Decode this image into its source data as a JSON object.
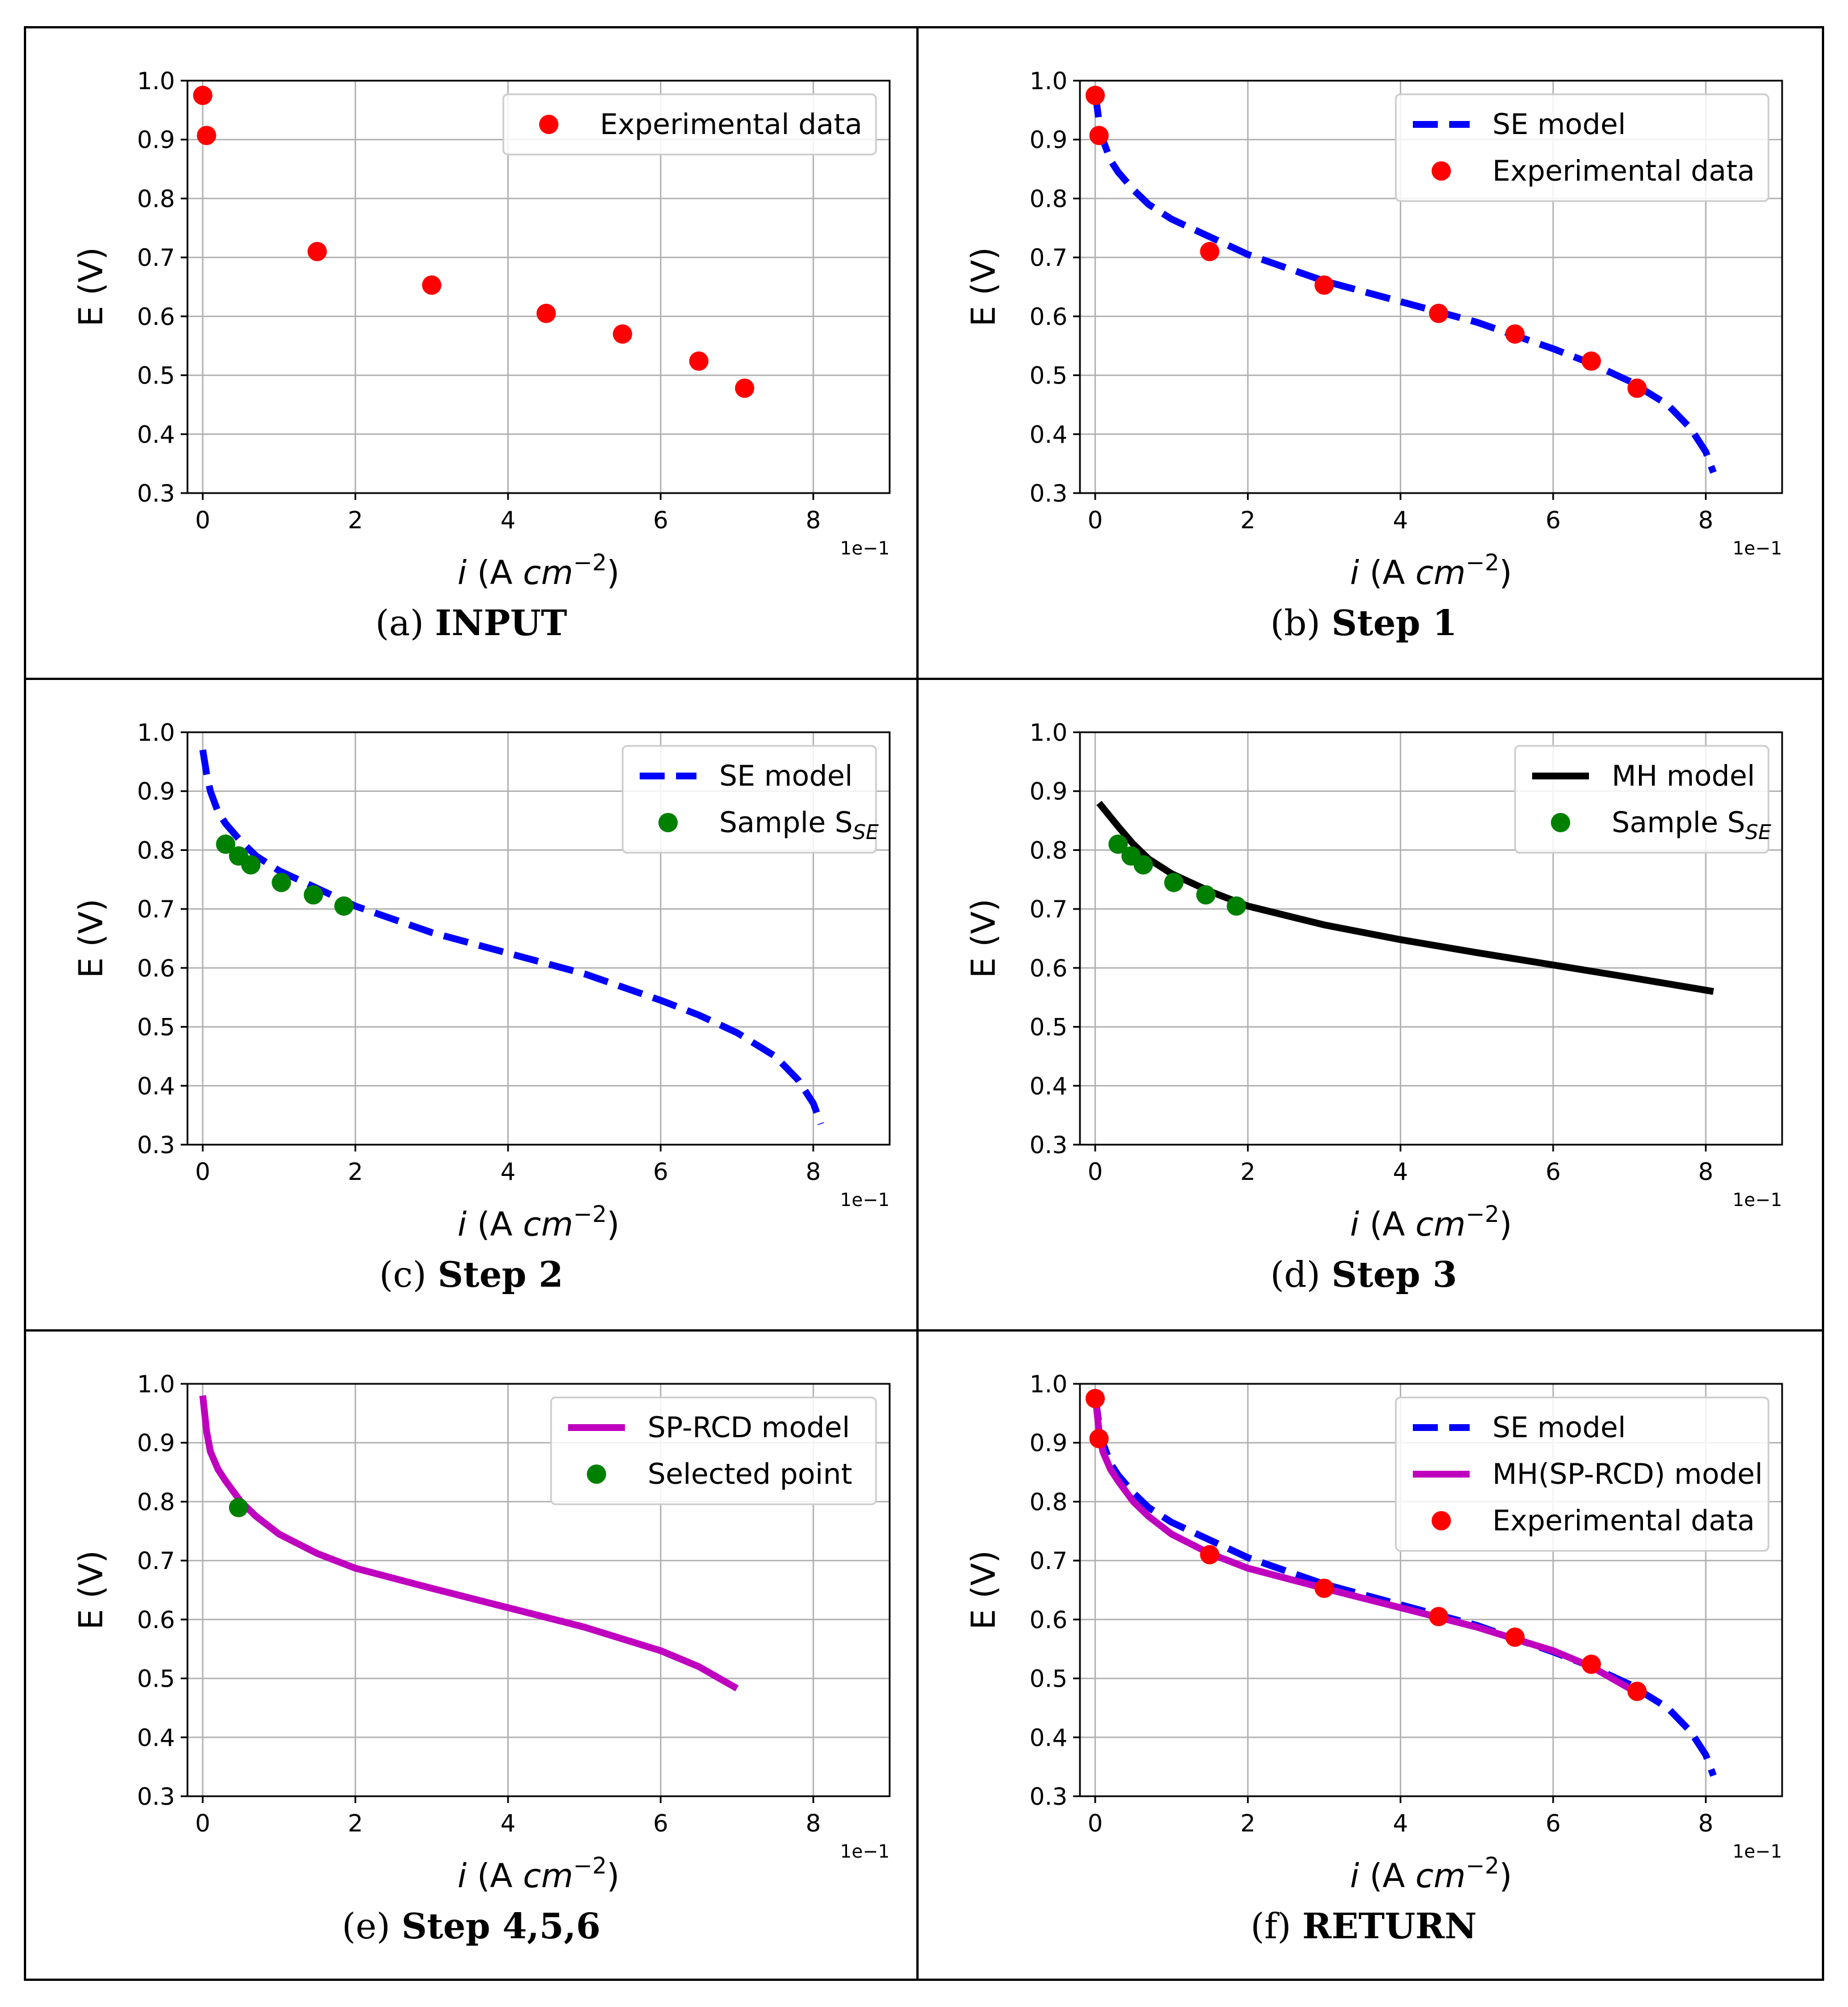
{
  "figure": {
    "panels_note": "six-panel figure of fuel cell polarization curves"
  },
  "colors": {
    "experimental": "#ff0000",
    "se_model": "#0000ff",
    "sample": "#008000",
    "mh_model": "#000000",
    "sprcd_model": "#bf00bf",
    "grid": "#b0b0b0"
  },
  "chart_data": [
    {
      "id": "a",
      "type": "scatter",
      "caption_label": "(a)",
      "caption_title": "INPUT",
      "xlabel_i": "i",
      "xlabel_rest": " (A ",
      "xlabel_unit": "cm",
      "xlabel_exp": "−2",
      "xlabel_close": ")",
      "ylabel": "E (V)",
      "offset_text": "1e−1",
      "xlim": [
        -0.2,
        9.0
      ],
      "ylim": [
        0.3,
        1.0
      ],
      "xticks": [
        0,
        2,
        4,
        6,
        8
      ],
      "xtick_labels": [
        "0",
        "2",
        "4",
        "6",
        "8"
      ],
      "yticks": [
        0.3,
        0.4,
        0.5,
        0.6,
        0.7,
        0.8,
        0.9,
        1.0
      ],
      "ytick_labels": [
        "0.3",
        "0.4",
        "0.5",
        "0.6",
        "0.7",
        "0.8",
        "0.9",
        "1.0"
      ],
      "legend_position": "upper-right",
      "series": [
        {
          "name": "Experimental data",
          "kind": "scatter",
          "color": "#ff0000",
          "x": [
            0.0,
            0.05,
            1.5,
            3.0,
            4.5,
            5.5,
            6.5,
            7.1
          ],
          "y": [
            0.975,
            0.907,
            0.71,
            0.653,
            0.605,
            0.57,
            0.524,
            0.478
          ]
        }
      ]
    },
    {
      "id": "b",
      "type": "line",
      "caption_label": "(b)",
      "caption_title": "Step 1",
      "xlabel_i": "i",
      "xlabel_rest": " (A ",
      "xlabel_unit": "cm",
      "xlabel_exp": "−2",
      "xlabel_close": ")",
      "ylabel": "E (V)",
      "offset_text": "1e−1",
      "xlim": [
        -0.2,
        9.0
      ],
      "ylim": [
        0.3,
        1.0
      ],
      "xticks": [
        0,
        2,
        4,
        6,
        8
      ],
      "xtick_labels": [
        "0",
        "2",
        "4",
        "6",
        "8"
      ],
      "yticks": [
        0.3,
        0.4,
        0.5,
        0.6,
        0.7,
        0.8,
        0.9,
        1.0
      ],
      "ytick_labels": [
        "0.3",
        "0.4",
        "0.5",
        "0.6",
        "0.7",
        "0.8",
        "0.9",
        "1.0"
      ],
      "legend_position": "upper-right",
      "series": [
        {
          "name": "SE model",
          "kind": "dashed-line",
          "color": "#0000ff",
          "x": [
            0.0,
            0.05,
            0.1,
            0.2,
            0.3,
            0.5,
            0.7,
            1.0,
            1.5,
            2.0,
            3.0,
            4.0,
            5.0,
            6.0,
            6.5,
            7.0,
            7.5,
            7.8,
            8.0,
            8.1
          ],
          "y": [
            0.98,
            0.93,
            0.9,
            0.865,
            0.845,
            0.815,
            0.79,
            0.765,
            0.735,
            0.705,
            0.66,
            0.625,
            0.59,
            0.545,
            0.52,
            0.49,
            0.45,
            0.41,
            0.37,
            0.335
          ]
        },
        {
          "name": "Experimental data",
          "kind": "scatter",
          "color": "#ff0000",
          "x": [
            0.0,
            0.05,
            1.5,
            3.0,
            4.5,
            5.5,
            6.5,
            7.1
          ],
          "y": [
            0.975,
            0.907,
            0.71,
            0.653,
            0.605,
            0.57,
            0.524,
            0.478
          ]
        }
      ]
    },
    {
      "id": "c",
      "type": "line",
      "caption_label": "(c)",
      "caption_title": "Step 2",
      "xlabel_i": "i",
      "xlabel_rest": " (A ",
      "xlabel_unit": "cm",
      "xlabel_exp": "−2",
      "xlabel_close": ")",
      "ylabel": "E (V)",
      "offset_text": "1e−1",
      "xlim": [
        -0.2,
        9.0
      ],
      "ylim": [
        0.3,
        1.0
      ],
      "xticks": [
        0,
        2,
        4,
        6,
        8
      ],
      "xtick_labels": [
        "0",
        "2",
        "4",
        "6",
        "8"
      ],
      "yticks": [
        0.3,
        0.4,
        0.5,
        0.6,
        0.7,
        0.8,
        0.9,
        1.0
      ],
      "ytick_labels": [
        "0.3",
        "0.4",
        "0.5",
        "0.6",
        "0.7",
        "0.8",
        "0.9",
        "1.0"
      ],
      "legend_position": "upper-right",
      "series": [
        {
          "name": "SE model",
          "kind": "dashed-line",
          "color": "#0000ff",
          "x": [
            0.0,
            0.05,
            0.1,
            0.2,
            0.3,
            0.5,
            0.7,
            1.0,
            1.5,
            2.0,
            3.0,
            4.0,
            5.0,
            6.0,
            6.5,
            7.0,
            7.5,
            7.8,
            8.0,
            8.1
          ],
          "y": [
            0.97,
            0.93,
            0.9,
            0.865,
            0.845,
            0.815,
            0.79,
            0.765,
            0.735,
            0.705,
            0.66,
            0.625,
            0.59,
            0.545,
            0.52,
            0.49,
            0.45,
            0.41,
            0.37,
            0.335
          ]
        },
        {
          "name": "Sample S",
          "name_sub": "SE",
          "kind": "scatter",
          "color": "#008000",
          "x": [
            0.3,
            0.47,
            0.63,
            1.03,
            1.45,
            1.85
          ],
          "y": [
            0.81,
            0.79,
            0.775,
            0.745,
            0.724,
            0.705
          ]
        }
      ]
    },
    {
      "id": "d",
      "type": "line",
      "caption_label": "(d)",
      "caption_title": "Step 3",
      "xlabel_i": "i",
      "xlabel_rest": " (A ",
      "xlabel_unit": "cm",
      "xlabel_exp": "−2",
      "xlabel_close": ")",
      "ylabel": "E (V)",
      "offset_text": "1e−1",
      "xlim": [
        -0.2,
        9.0
      ],
      "ylim": [
        0.3,
        1.0
      ],
      "xticks": [
        0,
        2,
        4,
        6,
        8
      ],
      "xtick_labels": [
        "0",
        "2",
        "4",
        "6",
        "8"
      ],
      "yticks": [
        0.3,
        0.4,
        0.5,
        0.6,
        0.7,
        0.8,
        0.9,
        1.0
      ],
      "ytick_labels": [
        "0.3",
        "0.4",
        "0.5",
        "0.6",
        "0.7",
        "0.8",
        "0.9",
        "1.0"
      ],
      "legend_position": "upper-right",
      "series": [
        {
          "name": "MH model",
          "kind": "solid-line",
          "color": "#000000",
          "x": [
            0.05,
            0.3,
            0.5,
            0.7,
            1.0,
            1.5,
            2.0,
            3.0,
            4.0,
            5.0,
            6.0,
            7.0,
            8.1
          ],
          "y": [
            0.88,
            0.84,
            0.81,
            0.785,
            0.76,
            0.73,
            0.705,
            0.673,
            0.648,
            0.626,
            0.605,
            0.584,
            0.56
          ]
        },
        {
          "name": "Sample S",
          "name_sub": "SE",
          "kind": "scatter",
          "color": "#008000",
          "x": [
            0.3,
            0.47,
            0.63,
            1.03,
            1.45,
            1.85
          ],
          "y": [
            0.81,
            0.79,
            0.775,
            0.745,
            0.724,
            0.705
          ]
        }
      ]
    },
    {
      "id": "e",
      "type": "line",
      "caption_label": "(e)",
      "caption_title": "Step 4,5,6",
      "xlabel_i": "i",
      "xlabel_rest": " (A ",
      "xlabel_unit": "cm",
      "xlabel_exp": "−2",
      "xlabel_close": ")",
      "ylabel": "E (V)",
      "offset_text": "1e−1",
      "xlim": [
        -0.2,
        9.0
      ],
      "ylim": [
        0.3,
        1.0
      ],
      "xticks": [
        0,
        2,
        4,
        6,
        8
      ],
      "xtick_labels": [
        "0",
        "2",
        "4",
        "6",
        "8"
      ],
      "yticks": [
        0.3,
        0.4,
        0.5,
        0.6,
        0.7,
        0.8,
        0.9,
        1.0
      ],
      "ytick_labels": [
        "0.3",
        "0.4",
        "0.5",
        "0.6",
        "0.7",
        "0.8",
        "0.9",
        "1.0"
      ],
      "legend_position": "upper-right",
      "series": [
        {
          "name": "SP-RCD model",
          "kind": "solid-line",
          "color": "#bf00bf",
          "x": [
            0.0,
            0.05,
            0.1,
            0.2,
            0.3,
            0.5,
            0.7,
            1.0,
            1.5,
            2.0,
            3.0,
            4.0,
            5.0,
            6.0,
            6.5,
            7.0
          ],
          "y": [
            0.98,
            0.92,
            0.885,
            0.855,
            0.835,
            0.8,
            0.775,
            0.745,
            0.712,
            0.687,
            0.653,
            0.62,
            0.587,
            0.547,
            0.52,
            0.483
          ]
        },
        {
          "name": "Selected point",
          "kind": "scatter",
          "color": "#008000",
          "x": [
            0.47
          ],
          "y": [
            0.79
          ]
        }
      ]
    },
    {
      "id": "f",
      "type": "line",
      "caption_label": "(f)",
      "caption_title": "RETURN",
      "xlabel_i": "i",
      "xlabel_rest": " (A ",
      "xlabel_unit": "cm",
      "xlabel_exp": "−2",
      "xlabel_close": ")",
      "ylabel": "E (V)",
      "offset_text": "1e−1",
      "xlim": [
        -0.2,
        9.0
      ],
      "ylim": [
        0.3,
        1.0
      ],
      "xticks": [
        0,
        2,
        4,
        6,
        8
      ],
      "xtick_labels": [
        "0",
        "2",
        "4",
        "6",
        "8"
      ],
      "yticks": [
        0.3,
        0.4,
        0.5,
        0.6,
        0.7,
        0.8,
        0.9,
        1.0
      ],
      "ytick_labels": [
        "0.3",
        "0.4",
        "0.5",
        "0.6",
        "0.7",
        "0.8",
        "0.9",
        "1.0"
      ],
      "legend_position": "upper-right",
      "series": [
        {
          "name": "SE model",
          "kind": "dashed-line",
          "color": "#0000ff",
          "x": [
            0.0,
            0.05,
            0.1,
            0.2,
            0.3,
            0.5,
            0.7,
            1.0,
            1.5,
            2.0,
            3.0,
            4.0,
            5.0,
            6.0,
            6.5,
            7.0,
            7.5,
            7.8,
            8.0,
            8.1
          ],
          "y": [
            0.98,
            0.93,
            0.9,
            0.865,
            0.845,
            0.815,
            0.79,
            0.765,
            0.735,
            0.705,
            0.66,
            0.625,
            0.59,
            0.545,
            0.52,
            0.49,
            0.45,
            0.41,
            0.37,
            0.335
          ]
        },
        {
          "name": "MH(SP-RCD) model",
          "kind": "solid-line",
          "color": "#bf00bf",
          "x": [
            0.0,
            0.05,
            0.1,
            0.2,
            0.3,
            0.5,
            0.7,
            1.0,
            1.5,
            2.0,
            3.0,
            4.0,
            5.0,
            6.0,
            6.5,
            7.0
          ],
          "y": [
            0.98,
            0.92,
            0.885,
            0.855,
            0.835,
            0.8,
            0.775,
            0.745,
            0.712,
            0.687,
            0.653,
            0.62,
            0.587,
            0.547,
            0.52,
            0.483
          ]
        },
        {
          "name": "Experimental data",
          "kind": "scatter",
          "color": "#ff0000",
          "x": [
            0.0,
            0.05,
            1.5,
            3.0,
            4.5,
            5.5,
            6.5,
            7.1
          ],
          "y": [
            0.975,
            0.907,
            0.71,
            0.653,
            0.605,
            0.57,
            0.524,
            0.478
          ]
        }
      ]
    }
  ]
}
